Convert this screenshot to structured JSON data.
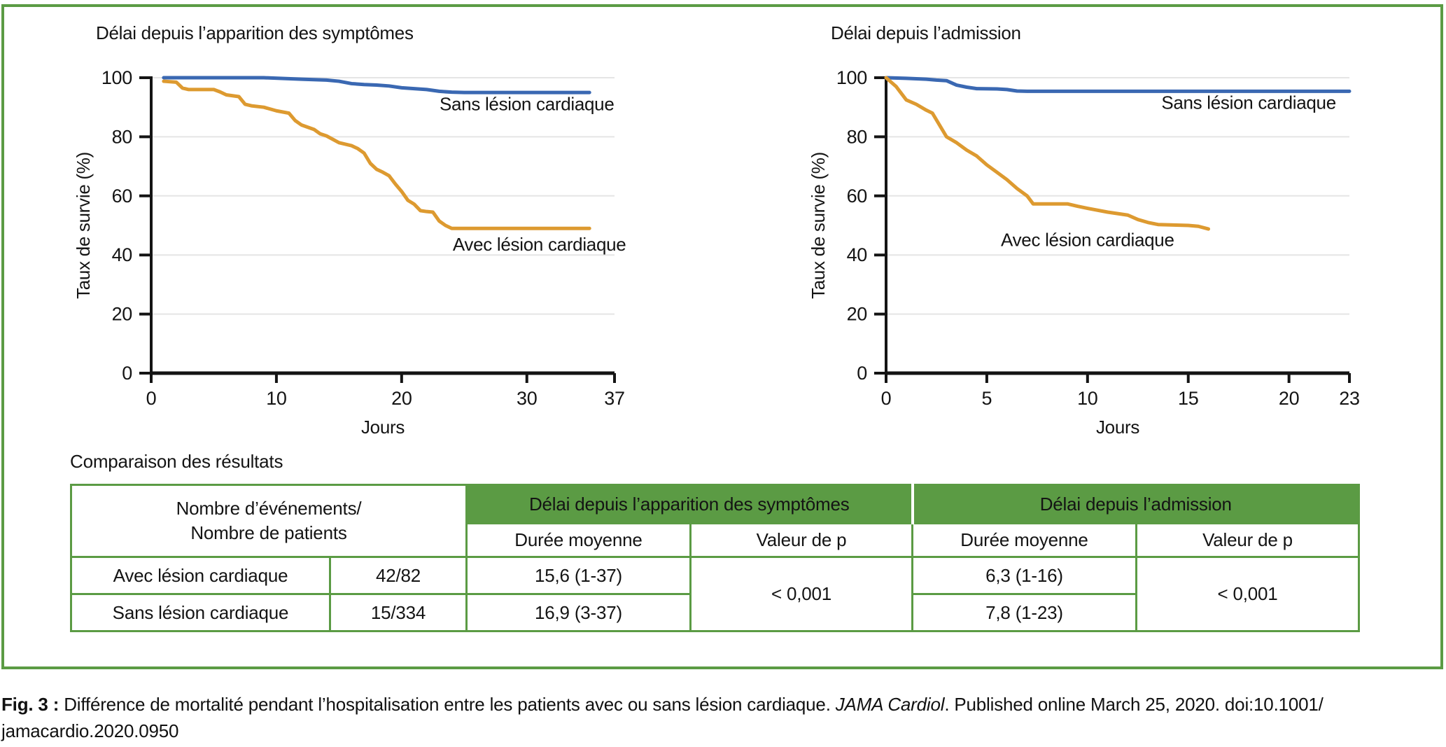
{
  "colors": {
    "accent_green": "#5b9b44",
    "line_blue": "#3a68b2",
    "line_orange": "#dd9a30",
    "gridline": "#e5e5e5",
    "axis": "#141414"
  },
  "chart_data": [
    {
      "type": "line",
      "title": "Délai depuis l’apparition des symptômes",
      "xlabel": "Jours",
      "ylabel": "Taux de survie (%)",
      "xlim": [
        0,
        37
      ],
      "ylim": [
        0,
        100
      ],
      "xticks": [
        0,
        10,
        20,
        30,
        37
      ],
      "yticks": [
        0,
        20,
        40,
        60,
        80,
        100
      ],
      "grid": true,
      "legend_position": "inline-labels",
      "series": [
        {
          "name": "Sans lésion cardiaque",
          "color": "#3a68b2",
          "label_anchor": [
            30,
            89
          ],
          "points": [
            [
              1,
              100
            ],
            [
              9,
              100
            ],
            [
              12,
              99.5
            ],
            [
              14,
              99.2
            ],
            [
              15,
              98.8
            ],
            [
              16,
              98
            ],
            [
              17,
              97.7
            ],
            [
              18,
              97.5
            ],
            [
              19,
              97.2
            ],
            [
              20,
              96.6
            ],
            [
              21,
              96.3
            ],
            [
              22,
              96
            ],
            [
              23,
              95.4
            ],
            [
              24,
              95.1
            ],
            [
              25,
              95
            ],
            [
              35,
              95
            ]
          ]
        },
        {
          "name": "Avec lésion cardiaque",
          "color": "#dd9a30",
          "label_anchor": [
            31,
            41.5
          ],
          "points": [
            [
              1,
              98.8
            ],
            [
              2,
              98.5
            ],
            [
              2.5,
              96.5
            ],
            [
              3,
              96
            ],
            [
              5,
              96
            ],
            [
              5.5,
              95.2
            ],
            [
              6,
              94.2
            ],
            [
              7,
              93.6
            ],
            [
              7.5,
              91
            ],
            [
              8,
              90.5
            ],
            [
              9,
              90
            ],
            [
              10,
              88.8
            ],
            [
              11,
              88
            ],
            [
              11.5,
              85.5
            ],
            [
              12,
              84
            ],
            [
              13,
              82.5
            ],
            [
              13.5,
              81
            ],
            [
              14,
              80.3
            ],
            [
              15,
              78
            ],
            [
              16,
              77
            ],
            [
              16.5,
              76
            ],
            [
              17,
              74.5
            ],
            [
              17.5,
              71
            ],
            [
              18,
              69
            ],
            [
              18.5,
              68
            ],
            [
              19,
              66.8
            ],
            [
              19.5,
              64
            ],
            [
              20,
              61.5
            ],
            [
              20.5,
              58.5
            ],
            [
              21,
              57.2
            ],
            [
              21.5,
              55
            ],
            [
              22,
              54.7
            ],
            [
              22.5,
              54.5
            ],
            [
              23,
              51.5
            ],
            [
              23.5,
              50
            ],
            [
              24,
              49
            ],
            [
              35,
              49
            ]
          ]
        }
      ]
    },
    {
      "type": "line",
      "title": "Délai depuis l’admission",
      "xlabel": "Jours",
      "ylabel": "Taux de survie (%)",
      "xlim": [
        0,
        23
      ],
      "ylim": [
        0,
        100
      ],
      "xticks": [
        0,
        5,
        10,
        15,
        20,
        23
      ],
      "yticks": [
        0,
        20,
        40,
        60,
        80,
        100
      ],
      "grid": true,
      "legend_position": "inline-labels",
      "series": [
        {
          "name": "Sans lésion cardiaque",
          "color": "#3a68b2",
          "label_anchor": [
            18,
            89.5
          ],
          "points": [
            [
              0,
              100
            ],
            [
              1,
              99.8
            ],
            [
              2,
              99.5
            ],
            [
              2.5,
              99.2
            ],
            [
              3,
              99
            ],
            [
              3.5,
              97.5
            ],
            [
              4,
              96.8
            ],
            [
              4.5,
              96.3
            ],
            [
              5.5,
              96.2
            ],
            [
              6,
              96
            ],
            [
              6.5,
              95.5
            ],
            [
              7,
              95.4
            ],
            [
              23,
              95.4
            ]
          ]
        },
        {
          "name": "Avec lésion cardiaque",
          "color": "#dd9a30",
          "label_anchor": [
            10,
            43
          ],
          "points": [
            [
              0,
              100
            ],
            [
              0.5,
              97
            ],
            [
              1,
              92.5
            ],
            [
              1.5,
              91
            ],
            [
              2,
              89
            ],
            [
              2.3,
              88
            ],
            [
              3,
              80
            ],
            [
              3.5,
              78
            ],
            [
              4,
              75.5
            ],
            [
              4.5,
              73.5
            ],
            [
              5,
              70.5
            ],
            [
              5.5,
              68
            ],
            [
              6,
              65.5
            ],
            [
              6.5,
              62.5
            ],
            [
              7,
              60
            ],
            [
              7.3,
              57.3
            ],
            [
              9,
              57.3
            ],
            [
              9.5,
              56.5
            ],
            [
              10,
              55.8
            ],
            [
              11,
              54.5
            ],
            [
              12,
              53.5
            ],
            [
              12.5,
              52
            ],
            [
              13,
              51
            ],
            [
              13.5,
              50.3
            ],
            [
              15,
              50
            ],
            [
              15.5,
              49.7
            ],
            [
              16,
              48.8
            ]
          ]
        }
      ]
    }
  ],
  "table": {
    "section_title": "Comparaison des résultats",
    "corner_header_line1": "Nombre d’événements/",
    "corner_header_line2": "Nombre de patients",
    "group_headers": [
      "Délai depuis l’apparition des symptômes",
      "Délai depuis l’admission"
    ],
    "sub_headers": [
      "Durée moyenne",
      "Valeur de p",
      "Durée moyenne",
      "Valeur de p"
    ],
    "rows": [
      {
        "label": "Avec lésion cardiaque",
        "events": "42/82",
        "duration_symptoms": "15,6 (1-37)",
        "duration_admission": "6,3 (1-16)"
      },
      {
        "label": "Sans lésion cardiaque",
        "events": "15/334",
        "duration_symptoms": "16,9 (3-37)",
        "duration_admission": "7,8 (1-23)"
      }
    ],
    "p_value_symptoms": "< 0,001",
    "p_value_admission": "< 0,001"
  },
  "caption": {
    "fig_label": "Fig. 3 :",
    "text_before_journal": " Différence de mortalité pendant l’hospitalisation entre les patients avec ou sans lésion cardiaque. ",
    "journal": "JAMA Cardiol",
    "text_after_journal": ". Published online March 25, 2020. doi:10.1001/",
    "line2": "jamacardio.2020.0950"
  }
}
